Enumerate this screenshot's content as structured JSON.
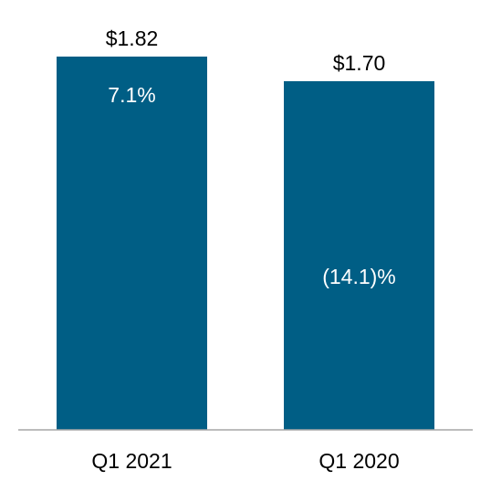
{
  "chart_data": {
    "type": "bar",
    "categories": [
      "Q1 2021",
      "Q1 2020"
    ],
    "values": [
      1.82,
      1.7
    ],
    "value_labels": [
      "$1.82",
      "$1.70"
    ],
    "inner_labels": [
      "7.1%",
      "(14.1)%"
    ],
    "title": "",
    "xlabel": "",
    "ylabel": "",
    "ylim": [
      0,
      1.82
    ],
    "grid": false,
    "legend": "none",
    "bar_color": "#005E85",
    "axis_color": "#A6A6A6"
  }
}
